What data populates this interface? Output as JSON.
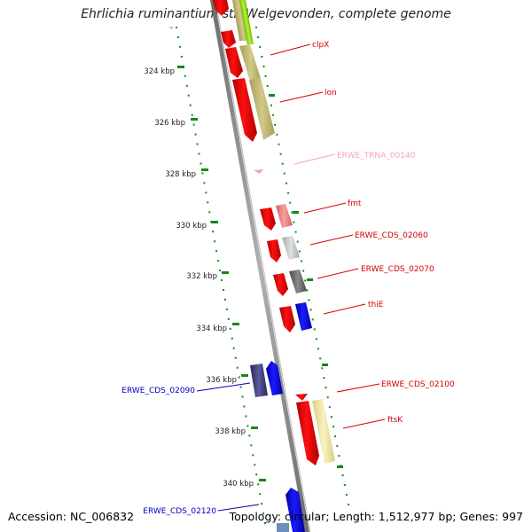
{
  "title": "Ehrlichia ruminantium str. Welgevonden, complete genome",
  "footer": {
    "accession": "Accession: NC_006832",
    "summary": "Topology: circular; Length: 1,512,977 bp; Genes: 997"
  },
  "ruler": {
    "ticks": [
      "324 kbp",
      "326 kbp",
      "328 kbp",
      "330 kbp",
      "332 kbp",
      "334 kbp",
      "336 kbp",
      "338 kbp",
      "340 kbp"
    ]
  },
  "genes": [
    {
      "label": "clpX",
      "strand": "forward",
      "color": "#d40000"
    },
    {
      "label": "lon",
      "strand": "forward",
      "color": "#d40000"
    },
    {
      "label": "ERWE_TRNA_00140",
      "strand": "forward",
      "color": "#f2a0c8"
    },
    {
      "label": "fmt",
      "strand": "forward",
      "color": "#d40000"
    },
    {
      "label": "ERWE_CDS_02060",
      "strand": "forward",
      "color": "#d40000"
    },
    {
      "label": "ERWE_CDS_02070",
      "strand": "forward",
      "color": "#d40000"
    },
    {
      "label": "thiE",
      "strand": "forward",
      "color": "#d40000"
    },
    {
      "label": "ERWE_CDS_02090",
      "strand": "reverse",
      "color": "#0000c0"
    },
    {
      "label": "ERWE_CDS_02100",
      "strand": "forward",
      "color": "#d40000"
    },
    {
      "label": "ftsK",
      "strand": "forward",
      "color": "#d40000"
    },
    {
      "label": "ERWE_CDS_02120",
      "strand": "reverse",
      "color": "#0000c0"
    }
  ],
  "colors": {
    "backbone": "#8a8a8a",
    "forward_cds": "#ff0000",
    "reverse_cds": "#0000ff",
    "ruler": "#138a13",
    "cog_olive": "#c9c080",
    "cog_pink": "#f08080",
    "cog_lightgray": "#c8c8c8",
    "cog_darkgray": "#6a6a6a",
    "cog_navy": "#3a3a7a",
    "cog_lightyellow": "#efe7a0"
  }
}
